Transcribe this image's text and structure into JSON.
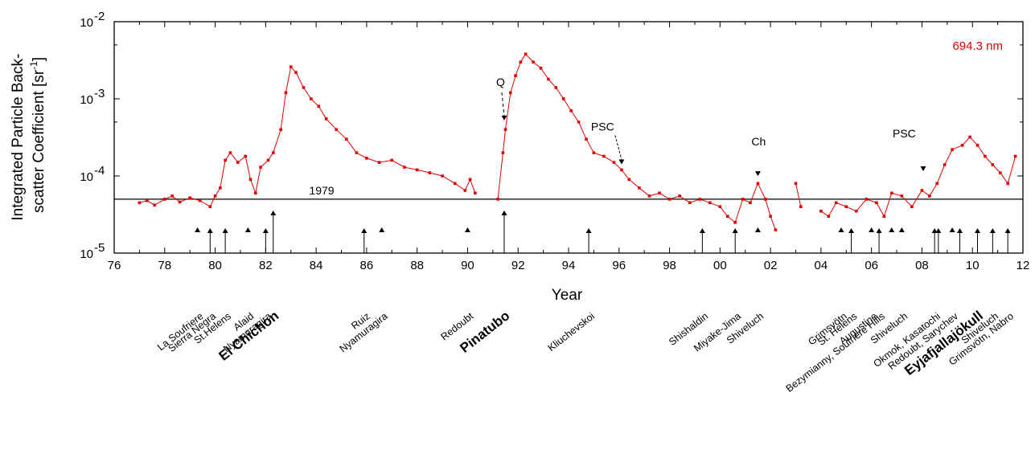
{
  "chart_data": {
    "type": "scatter",
    "wavelength_label": "694.3 nm",
    "xlabel": "Year",
    "ylabel_lines": [
      "Integrated Particle Back-",
      "scatter Coefficient [sr"
    ],
    "ylabel_sup": "-1",
    "ylabel_close": "]",
    "xlim": [
      1976,
      2012
    ],
    "ylim": [
      1e-05,
      0.01
    ],
    "yscale": "log",
    "grid": false,
    "x_ticks": [
      {
        "v": 1976,
        "label": "76"
      },
      {
        "v": 1978,
        "label": "78"
      },
      {
        "v": 1980,
        "label": "80"
      },
      {
        "v": 1982,
        "label": "82"
      },
      {
        "v": 1984,
        "label": "84"
      },
      {
        "v": 1986,
        "label": "86"
      },
      {
        "v": 1988,
        "label": "88"
      },
      {
        "v": 1990,
        "label": "90"
      },
      {
        "v": 1992,
        "label": "92"
      },
      {
        "v": 1994,
        "label": "94"
      },
      {
        "v": 1996,
        "label": "96"
      },
      {
        "v": 1998,
        "label": "98"
      },
      {
        "v": 2000,
        "label": "00"
      },
      {
        "v": 2002,
        "label": "02"
      },
      {
        "v": 2004,
        "label": "04"
      },
      {
        "v": 2006,
        "label": "06"
      },
      {
        "v": 2008,
        "label": "08"
      },
      {
        "v": 2010,
        "label": "10"
      },
      {
        "v": 2012,
        "label": "12"
      }
    ],
    "y_ticks": [
      {
        "v": 1e-05,
        "base": "10",
        "exp": "-5"
      },
      {
        "v": 0.0001,
        "base": "10",
        "exp": "-4"
      },
      {
        "v": 0.001,
        "base": "10",
        "exp": "-3"
      },
      {
        "v": 0.01,
        "base": "10",
        "exp": "-2"
      }
    ],
    "reference_line": {
      "y": 5e-05,
      "label": "1979"
    },
    "series": [
      {
        "color": "#e00000",
        "points": [
          [
            1977.0,
            4.5e-05
          ],
          [
            1977.3,
            4.8e-05
          ],
          [
            1977.6,
            4.2e-05
          ],
          [
            1978.0,
            5e-05
          ],
          [
            1978.3,
            5.5e-05
          ],
          [
            1978.6,
            4.6e-05
          ],
          [
            1979.0,
            5.2e-05
          ],
          [
            1979.4,
            4.8e-05
          ],
          [
            1979.8,
            4e-05
          ],
          [
            1980.0,
            5.5e-05
          ],
          [
            1980.2,
            7e-05
          ],
          [
            1980.4,
            0.00016
          ],
          [
            1980.6,
            0.0002
          ],
          [
            1980.9,
            0.00015
          ],
          [
            1981.2,
            0.00018
          ],
          [
            1981.4,
            9e-05
          ],
          [
            1981.6,
            6e-05
          ],
          [
            1981.8,
            0.00013
          ],
          [
            1982.1,
            0.00016
          ],
          [
            1982.3,
            0.0002
          ],
          [
            1982.6,
            0.0004
          ],
          [
            1982.8,
            0.0012
          ],
          [
            1983.0,
            0.0026
          ],
          [
            1983.2,
            0.0022
          ],
          [
            1983.5,
            0.0014
          ],
          [
            1983.8,
            0.001
          ],
          [
            1984.1,
            0.0008
          ],
          [
            1984.4,
            0.00055
          ],
          [
            1984.8,
            0.0004
          ],
          [
            1985.2,
            0.0003
          ],
          [
            1985.6,
            0.0002
          ],
          [
            1986.0,
            0.00017
          ],
          [
            1986.5,
            0.00015
          ],
          [
            1987.0,
            0.00016
          ],
          [
            1987.5,
            0.00013
          ],
          [
            1988.0,
            0.00012
          ],
          [
            1988.5,
            0.00011
          ],
          [
            1989.0,
            0.0001
          ],
          [
            1989.5,
            8e-05
          ],
          [
            1989.9,
            6.5e-05
          ],
          [
            1990.1,
            9e-05
          ],
          [
            1990.3,
            6e-05
          ],
          [
            1991.2,
            5e-05
          ],
          [
            1991.4,
            0.0002
          ],
          [
            1991.5,
            0.0004
          ],
          [
            1991.7,
            0.0012
          ],
          [
            1991.9,
            0.002
          ],
          [
            1992.1,
            0.003
          ],
          [
            1992.3,
            0.0038
          ],
          [
            1992.6,
            0.003
          ],
          [
            1992.9,
            0.0025
          ],
          [
            1993.2,
            0.0018
          ],
          [
            1993.5,
            0.0014
          ],
          [
            1993.8,
            0.001
          ],
          [
            1994.1,
            0.0007
          ],
          [
            1994.4,
            0.0005
          ],
          [
            1994.7,
            0.0003
          ],
          [
            1995.0,
            0.0002
          ],
          [
            1995.4,
            0.00018
          ],
          [
            1995.8,
            0.00015
          ],
          [
            1996.1,
            0.00012
          ],
          [
            1996.4,
            9e-05
          ],
          [
            1996.8,
            7e-05
          ],
          [
            1997.2,
            5.5e-05
          ],
          [
            1997.6,
            6e-05
          ],
          [
            1998.0,
            5e-05
          ],
          [
            1998.4,
            5.5e-05
          ],
          [
            1998.8,
            4.5e-05
          ],
          [
            1999.2,
            5e-05
          ],
          [
            1999.6,
            4.5e-05
          ],
          [
            2000.0,
            4e-05
          ],
          [
            2000.3,
            3e-05
          ],
          [
            2000.6,
            2.5e-05
          ],
          [
            2000.9,
            5e-05
          ],
          [
            2001.2,
            4.5e-05
          ],
          [
            2001.5,
            8e-05
          ],
          [
            2001.8,
            5e-05
          ],
          [
            2002.0,
            3e-05
          ],
          [
            2002.2,
            2e-05
          ],
          [
            2003.0,
            8e-05
          ],
          [
            2003.2,
            4e-05
          ],
          [
            2004.0,
            3.5e-05
          ],
          [
            2004.3,
            3e-05
          ],
          [
            2004.6,
            4.5e-05
          ],
          [
            2005.0,
            4e-05
          ],
          [
            2005.4,
            3.5e-05
          ],
          [
            2005.8,
            5e-05
          ],
          [
            2006.2,
            4.5e-05
          ],
          [
            2006.5,
            3e-05
          ],
          [
            2006.8,
            6e-05
          ],
          [
            2007.2,
            5.5e-05
          ],
          [
            2007.6,
            4e-05
          ],
          [
            2008.0,
            6.5e-05
          ],
          [
            2008.3,
            5.5e-05
          ],
          [
            2008.6,
            8e-05
          ],
          [
            2008.9,
            0.00014
          ],
          [
            2009.2,
            0.00022
          ],
          [
            2009.6,
            0.00025
          ],
          [
            2009.9,
            0.00032
          ],
          [
            2010.2,
            0.00025
          ],
          [
            2010.5,
            0.00018
          ],
          [
            2010.8,
            0.00014
          ],
          [
            2011.1,
            0.00011
          ],
          [
            2011.4,
            8e-05
          ],
          [
            2011.7,
            0.00018
          ]
        ]
      }
    ],
    "annotations": [
      {
        "label": "Q",
        "x": 1991.45,
        "y": 0.0005
      },
      {
        "label": "PSC",
        "x": 1996.1,
        "y": 0.000135
      },
      {
        "label": "Ch",
        "x": 2001.5,
        "y": 9.5e-05
      },
      {
        "label": "PSC",
        "x": 2008.05,
        "y": 0.00011
      }
    ],
    "eruptions": [
      {
        "x": 1979.3,
        "kind": "tri"
      },
      {
        "x": 1979.8,
        "kind": "arrow"
      },
      {
        "x": 1980.4,
        "kind": "arrow"
      },
      {
        "x": 1981.3,
        "kind": "tri"
      },
      {
        "x": 1982.0,
        "kind": "arrow"
      },
      {
        "x": 1982.3,
        "kind": "tall"
      },
      {
        "x": 1985.9,
        "kind": "arrow"
      },
      {
        "x": 1986.6,
        "kind": "tri"
      },
      {
        "x": 1990.0,
        "kind": "tri"
      },
      {
        "x": 1991.45,
        "kind": "tall"
      },
      {
        "x": 1994.8,
        "kind": "arrow"
      },
      {
        "x": 1999.3,
        "kind": "arrow"
      },
      {
        "x": 2000.6,
        "kind": "arrow"
      },
      {
        "x": 2001.5,
        "kind": "tri"
      },
      {
        "x": 2004.8,
        "kind": "tri"
      },
      {
        "x": 2005.2,
        "kind": "arrow"
      },
      {
        "x": 2006.0,
        "kind": "tri"
      },
      {
        "x": 2006.3,
        "kind": "arrow"
      },
      {
        "x": 2006.8,
        "kind": "tri"
      },
      {
        "x": 2007.2,
        "kind": "tri"
      },
      {
        "x": 2008.5,
        "kind": "arrow"
      },
      {
        "x": 2008.65,
        "kind": "arrow"
      },
      {
        "x": 2009.2,
        "kind": "tri"
      },
      {
        "x": 2009.5,
        "kind": "arrow"
      },
      {
        "x": 2010.2,
        "kind": "arrow"
      },
      {
        "x": 2010.8,
        "kind": "arrow"
      },
      {
        "x": 2011.4,
        "kind": "arrow"
      }
    ],
    "volcano_labels": [
      {
        "text": "La Soufriere",
        "x": 1979.3,
        "bold": false,
        "drop": 0
      },
      {
        "text": "Sierra Negra",
        "x": 1979.8,
        "bold": false,
        "drop": 0
      },
      {
        "text": "St.Helens",
        "x": 1980.4,
        "bold": false,
        "drop": 0
      },
      {
        "text": "Alaid",
        "x": 1981.3,
        "bold": false,
        "drop": 0
      },
      {
        "text": "Nyamuragira",
        "x": 1982.0,
        "bold": false,
        "drop": 0
      },
      {
        "text": "El Chichon",
        "x": 1982.3,
        "bold": true,
        "drop": 0
      },
      {
        "text": "Ruiz",
        "x": 1985.9,
        "bold": false,
        "drop": 0
      },
      {
        "text": "Nyamuragira",
        "x": 1986.6,
        "bold": false,
        "drop": 0
      },
      {
        "text": "Redoubt",
        "x": 1990.0,
        "bold": false,
        "drop": 0
      },
      {
        "text": "Pinatubo",
        "x": 1991.45,
        "bold": true,
        "drop": 0
      },
      {
        "text": "Kliuchevskoi",
        "x": 1994.8,
        "bold": false,
        "drop": 0
      },
      {
        "text": "Shishaldin",
        "x": 1999.3,
        "bold": false,
        "drop": 0
      },
      {
        "text": "Miyake-Jima",
        "x": 2000.6,
        "bold": false,
        "drop": 0
      },
      {
        "text": "Shiveluch",
        "x": 2001.5,
        "bold": false,
        "drop": 0
      },
      {
        "text": "Grimsvötn",
        "x": 2004.8,
        "bold": false,
        "drop": 0
      },
      {
        "text": "St. Helens",
        "x": 2005.2,
        "bold": false,
        "drop": 0
      },
      {
        "text": "Augustine",
        "x": 2006.0,
        "bold": false,
        "drop": 0
      },
      {
        "text": "Bezymianny, Soufrière Hills",
        "x": 2006.3,
        "bold": false,
        "drop": 0
      },
      {
        "text": "Shiveluch",
        "x": 2007.2,
        "bold": false,
        "drop": 0
      },
      {
        "text": "Okmok, Kasatochi",
        "x": 2008.5,
        "bold": false,
        "drop": 0
      },
      {
        "text": "Redoubt, Sarychev",
        "x": 2009.2,
        "bold": false,
        "drop": 0
      },
      {
        "text": "Eyjafjallajökull",
        "x": 2010.2,
        "bold": true,
        "drop": 0
      },
      {
        "text": "Shiveluch",
        "x": 2010.8,
        "bold": false,
        "drop": 0
      },
      {
        "text": "Grimsvötn, Nabro",
        "x": 2011.4,
        "bold": false,
        "drop": 0
      }
    ]
  }
}
